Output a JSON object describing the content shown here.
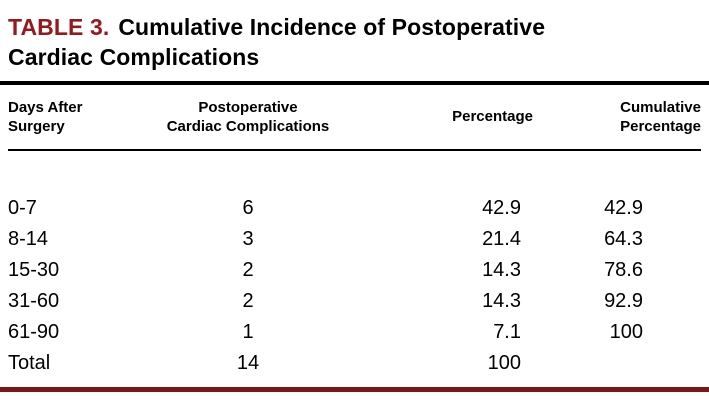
{
  "title": {
    "label": "TABLE 3.",
    "text": "Cumulative Incidence of Postoperative Cardiac Complications"
  },
  "display": {
    "headers": [
      "Days After\nSurgery",
      "Postoperative\nCardiac Complications",
      "Percentage",
      "Cumulative\nPercentage"
    ]
  },
  "chart_data": {
    "type": "table",
    "title": "TABLE 3. Cumulative Incidence of Postoperative Cardiac Complications",
    "columns": [
      "Days After Surgery",
      "Postoperative Cardiac Complications",
      "Percentage",
      "Cumulative Percentage"
    ],
    "rows": [
      [
        "0-7",
        "6",
        "42.9",
        "42.9"
      ],
      [
        "8-14",
        "3",
        "21.4",
        "64.3"
      ],
      [
        "15-30",
        "2",
        "14.3",
        "78.6"
      ],
      [
        "31-60",
        "2",
        "14.3",
        "92.9"
      ],
      [
        "61-90",
        "1",
        "7.1",
        "100"
      ],
      [
        "Total",
        "14",
        "100",
        ""
      ]
    ]
  },
  "colors": {
    "title_accent": "#97181D",
    "top_rule": "#000000",
    "bottom_rule": "#7B1518",
    "text": "#000000",
    "background": "#FFFFFF"
  }
}
